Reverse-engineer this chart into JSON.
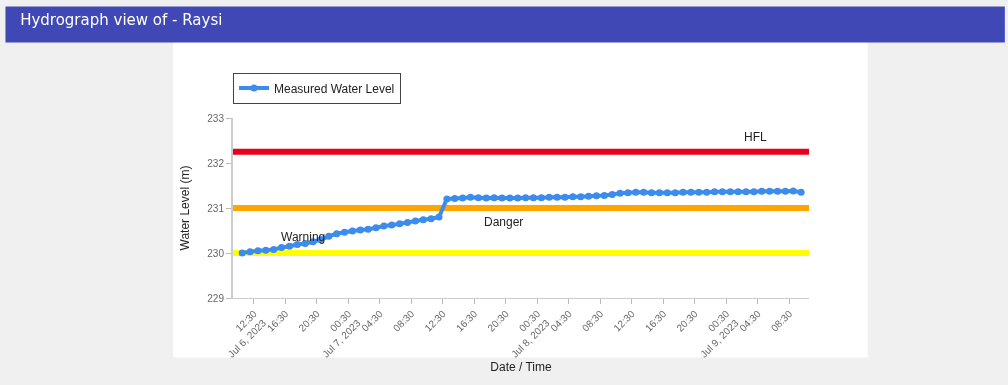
{
  "chart_data": {
    "type": "line",
    "title": "Hydrograph view of - Raysi",
    "xlabel": "Date / Time",
    "ylabel": "Water Level (m)",
    "x": [
      "2023-07-06T11:00",
      "2023-07-06T12:00",
      "2023-07-06T13:00",
      "2023-07-06T14:00",
      "2023-07-06T15:00",
      "2023-07-06T16:00",
      "2023-07-06T17:00",
      "2023-07-06T18:00",
      "2023-07-06T19:00",
      "2023-07-06T20:00",
      "2023-07-06T21:00",
      "2023-07-06T22:00",
      "2023-07-06T23:00",
      "2023-07-07T00:00",
      "2023-07-07T01:00",
      "2023-07-07T02:00",
      "2023-07-07T03:00",
      "2023-07-07T04:00",
      "2023-07-07T05:00",
      "2023-07-07T06:00",
      "2023-07-07T07:00",
      "2023-07-07T08:00",
      "2023-07-07T09:00",
      "2023-07-07T10:00",
      "2023-07-07T11:00",
      "2023-07-07T12:00",
      "2023-07-07T13:00",
      "2023-07-07T14:00",
      "2023-07-07T15:00",
      "2023-07-07T16:00",
      "2023-07-07T17:00",
      "2023-07-07T18:00",
      "2023-07-07T19:00",
      "2023-07-07T20:00",
      "2023-07-07T21:00",
      "2023-07-07T22:00",
      "2023-07-07T23:00",
      "2023-07-08T00:00",
      "2023-07-08T01:00",
      "2023-07-08T02:00",
      "2023-07-08T03:00",
      "2023-07-08T04:00",
      "2023-07-08T05:00",
      "2023-07-08T06:00",
      "2023-07-08T07:00",
      "2023-07-08T08:00",
      "2023-07-08T09:00",
      "2023-07-08T10:00",
      "2023-07-08T11:00",
      "2023-07-08T12:00",
      "2023-07-08T13:00",
      "2023-07-08T14:00",
      "2023-07-08T15:00",
      "2023-07-08T16:00",
      "2023-07-08T17:00",
      "2023-07-08T18:00",
      "2023-07-08T19:00",
      "2023-07-08T20:00",
      "2023-07-08T21:00",
      "2023-07-08T22:00",
      "2023-07-08T23:00",
      "2023-07-09T00:00",
      "2023-07-09T01:00",
      "2023-07-09T02:00",
      "2023-07-09T03:00",
      "2023-07-09T04:00",
      "2023-07-09T05:00",
      "2023-07-09T06:00",
      "2023-07-09T07:00",
      "2023-07-09T08:00",
      "2023-07-09T09:00",
      "2023-07-09T10:00"
    ],
    "series": [
      {
        "name": "Measured Water Level",
        "color": "#3b8ced",
        "values": [
          230.0,
          230.03,
          230.05,
          230.06,
          230.08,
          230.12,
          230.15,
          230.19,
          230.21,
          230.25,
          230.3,
          230.37,
          230.43,
          230.46,
          230.49,
          230.51,
          230.53,
          230.56,
          230.6,
          230.62,
          230.65,
          230.68,
          230.71,
          230.74,
          230.76,
          230.8,
          231.2,
          231.21,
          231.22,
          231.24,
          231.23,
          231.22,
          231.23,
          231.22,
          231.22,
          231.22,
          231.23,
          231.23,
          231.23,
          231.24,
          231.24,
          231.24,
          231.25,
          231.25,
          231.26,
          231.27,
          231.28,
          231.3,
          231.33,
          231.34,
          231.35,
          231.35,
          231.34,
          231.34,
          231.34,
          231.34,
          231.35,
          231.35,
          231.35,
          231.35,
          231.36,
          231.36,
          231.36,
          231.36,
          231.36,
          231.36,
          231.37,
          231.37,
          231.37,
          231.37,
          231.38,
          231.35
        ]
      }
    ],
    "xlim": [
      "2023-07-06T09:50",
      "2023-07-09T11:00"
    ],
    "xticks": [
      {
        "value": "2023-07-06T12:30",
        "label": "12:30\nJul 6, 2023"
      },
      {
        "value": "2023-07-06T16:30",
        "label": "16:30"
      },
      {
        "value": "2023-07-06T20:30",
        "label": "20:30"
      },
      {
        "value": "2023-07-07T00:30",
        "label": "00:30\nJul 7, 2023"
      },
      {
        "value": "2023-07-07T04:30",
        "label": "04:30"
      },
      {
        "value": "2023-07-07T08:30",
        "label": "08:30"
      },
      {
        "value": "2023-07-07T12:30",
        "label": "12:30"
      },
      {
        "value": "2023-07-07T16:30",
        "label": "16:30"
      },
      {
        "value": "2023-07-07T20:30",
        "label": "20:30"
      },
      {
        "value": "2023-07-08T00:30",
        "label": "00:30\nJul 8, 2023"
      },
      {
        "value": "2023-07-08T04:30",
        "label": "04:30"
      },
      {
        "value": "2023-07-08T08:30",
        "label": "08:30"
      },
      {
        "value": "2023-07-08T12:30",
        "label": "12:30"
      },
      {
        "value": "2023-07-08T16:30",
        "label": "16:30"
      },
      {
        "value": "2023-07-08T20:30",
        "label": "20:30"
      },
      {
        "value": "2023-07-09T00:30",
        "label": "00:30\nJul 9, 2023"
      },
      {
        "value": "2023-07-09T04:30",
        "label": "04:30"
      },
      {
        "value": "2023-07-09T08:30",
        "label": "08:30"
      }
    ],
    "ylim": [
      229,
      233
    ],
    "yticks": [
      229,
      230,
      231,
      232,
      233
    ],
    "ref_lines": [
      {
        "axis": "y",
        "value": 230.0,
        "label": "Warning",
        "color": "#ffff00"
      },
      {
        "axis": "y",
        "value": 231.0,
        "label": "Danger",
        "color": "#ffa500"
      },
      {
        "axis": "y",
        "value": 232.25,
        "label": "HFL",
        "color": "#e8001c"
      }
    ],
    "legend": "top left",
    "marker": "circle",
    "line_style": "solid"
  }
}
